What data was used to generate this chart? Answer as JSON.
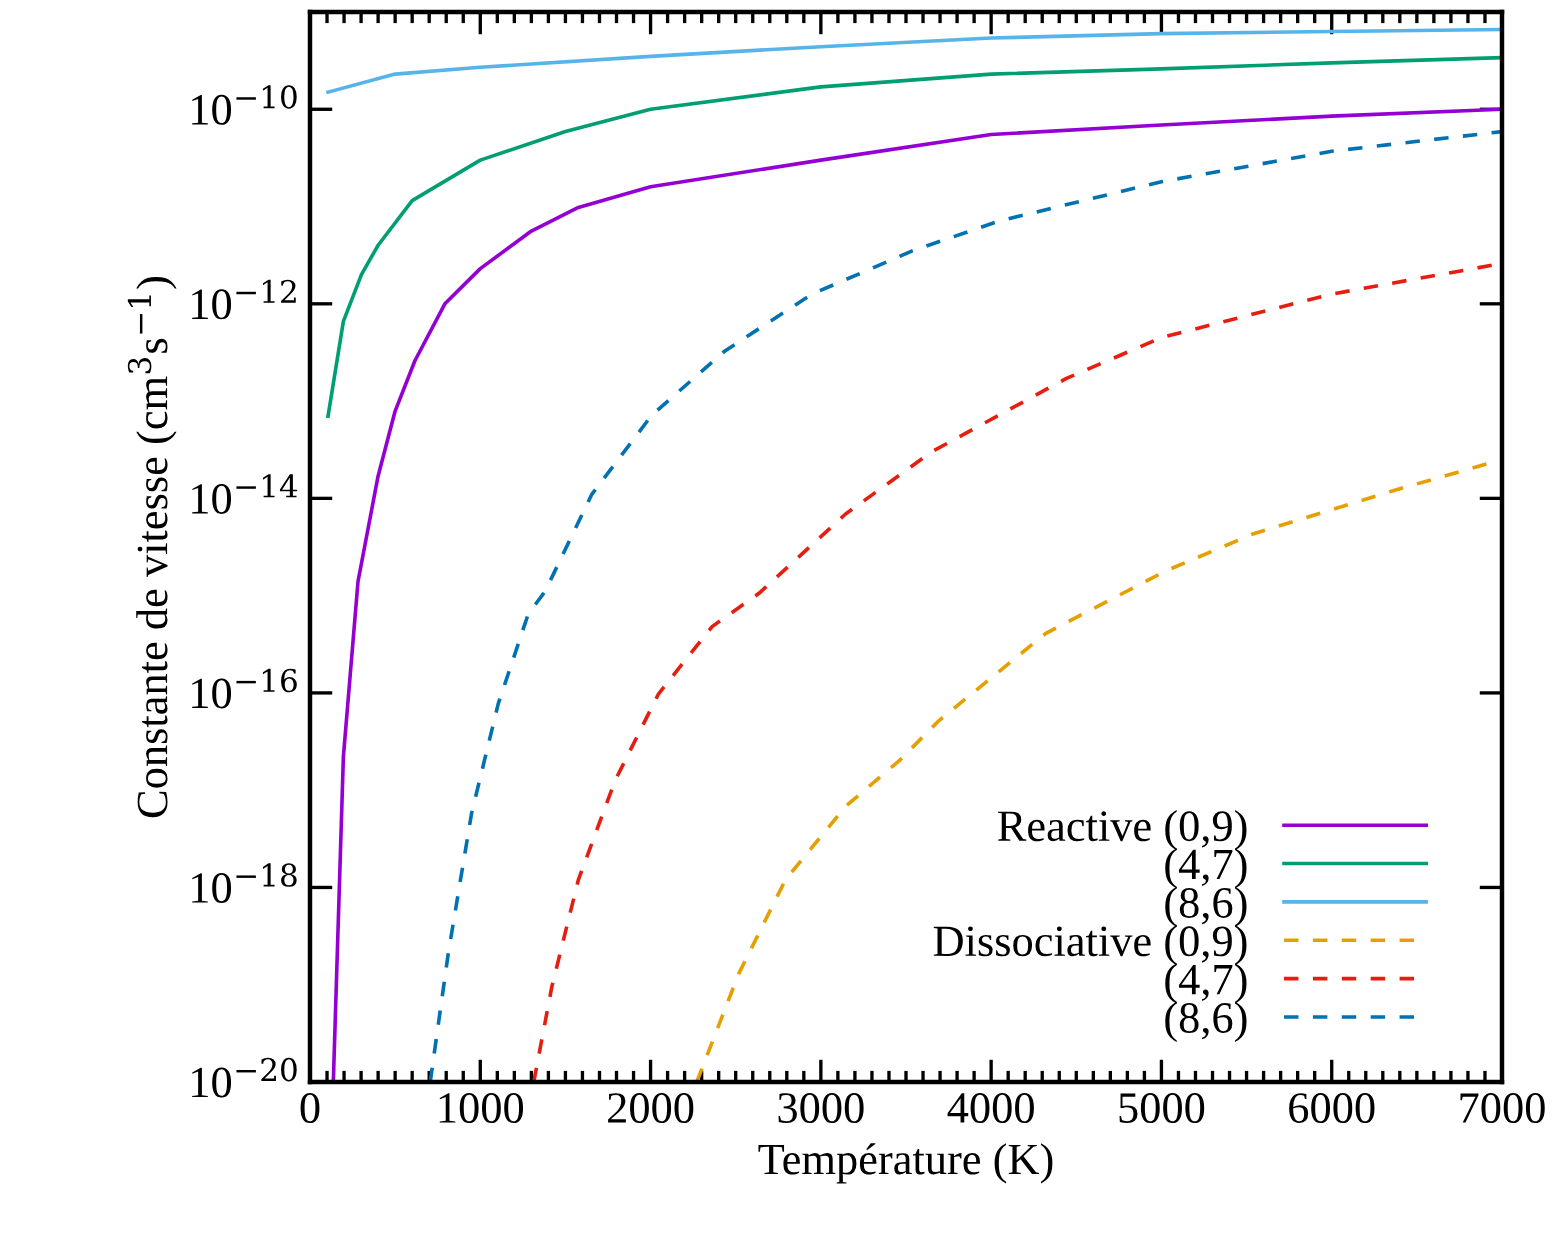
{
  "chart_data": {
    "type": "line",
    "xlabel": "Température (K)",
    "ylabel": "Constante de vitesse (cm$^{3}$s$^{−1}$)",
    "log": "y",
    "xlim": [
      0,
      7000
    ],
    "xticks": [
      0,
      1000,
      2000,
      3000,
      4000,
      5000,
      6000,
      7000
    ],
    "ylim": [
      1e-20,
      1e-09
    ],
    "yticks": [
      {
        "value": 1e-20,
        "label": "10$^{−20}$"
      },
      {
        "value": 1e-18,
        "label": "10$^{−18}$"
      },
      {
        "value": 1e-16,
        "label": "10$^{−16}$"
      },
      {
        "value": 1e-14,
        "label": "10$^{−14}$"
      },
      {
        "value": 1e-12,
        "label": "10$^{−12}$"
      },
      {
        "value": 1e-10,
        "label": "10$^{−10}$"
      }
    ],
    "grid": false,
    "legend": "bottom right",
    "marker": "none",
    "series": [
      {
        "name": "Reactive (0,9)",
        "color": "#9400d3",
        "line_style": "solid",
        "x": [
          137,
          196,
          282,
          400,
          500,
          616,
          792,
          1000,
          1300,
          1576,
          2000,
          3000,
          4000,
          5000,
          6000,
          7000
        ],
        "values": [
          1e-20,
          2.2e-17,
          1.4e-15,
          1.7e-14,
          7.9e-14,
          2.6e-13,
          1e-12,
          2.3e-12,
          5.6e-12,
          9.8e-12,
          1.6e-11,
          3e-11,
          5.5e-11,
          6.9e-11,
          8.5e-11,
          1e-10
        ]
      },
      {
        "name": "(4,7)",
        "color": "#009e73",
        "line_style": "solid",
        "x": [
          106,
          196,
          302,
          400,
          600,
          1000,
          1500,
          2000,
          3000,
          4000,
          5000,
          6000,
          7000
        ],
        "values": [
          7e-14,
          6.6e-13,
          2e-12,
          4e-12,
          1.15e-11,
          3e-11,
          5.9e-11,
          1e-10,
          1.7e-10,
          2.3e-10,
          2.6e-10,
          3e-10,
          3.4e-10
        ]
      },
      {
        "name": "(8,6)",
        "color": "#56b4e9",
        "line_style": "solid",
        "x": [
          106,
          500,
          1000,
          2000,
          3000,
          4000,
          5000,
          6000,
          7000
        ],
        "values": [
          1.5e-10,
          2.3e-10,
          2.7e-10,
          3.5e-10,
          4.4e-10,
          5.4e-10,
          6e-10,
          6.3e-10,
          6.6e-10
        ]
      },
      {
        "name": "Dissociative (0,9)",
        "color": "#e69f00",
        "line_style": "dashed",
        "x": [
          2271,
          2518,
          2792,
          3145,
          3459,
          3694,
          4321,
          5027,
          5537,
          6361,
          7000
        ],
        "values": [
          1e-20,
          1.3e-19,
          1.2e-18,
          6.8e-18,
          2e-17,
          5.2e-17,
          4.1e-16,
          1.8e-15,
          4.3e-15,
          1.2e-14,
          2.5e-14
        ]
      },
      {
        "name": "(4,7)",
        "color": "#e51e10",
        "line_style": "dashed",
        "x": [
          1314,
          1420,
          1576,
          1792,
          2047,
          2361,
          2635,
          3145,
          3650,
          4439,
          5000,
          6000,
          7000
        ],
        "values": [
          1e-20,
          9.5e-20,
          1.2e-18,
          1.26e-17,
          9.8e-17,
          4.8e-16,
          1.05e-15,
          6.9e-15,
          3e-14,
          1.7e-13,
          4.5e-13,
          1.26e-12,
          2.6e-12
        ]
      },
      {
        "name": "(8,6)",
        "color": "#0072b2",
        "line_style": "dashed",
        "x": [
          706,
          812,
          949,
          1106,
          1282,
          1380,
          1655,
          2008,
          2439,
          2949,
          3537,
          4047,
          5000,
          6000,
          7000
        ],
        "values": [
          1e-20,
          2.1e-19,
          5.8e-18,
          7.8e-17,
          6.5e-16,
          1.1e-15,
          1.1e-14,
          7.2e-14,
          3.3e-13,
          1.26e-12,
          3.5e-12,
          7.1e-12,
          1.8e-11,
          3.7e-11,
          5.9e-11
        ]
      }
    ]
  }
}
